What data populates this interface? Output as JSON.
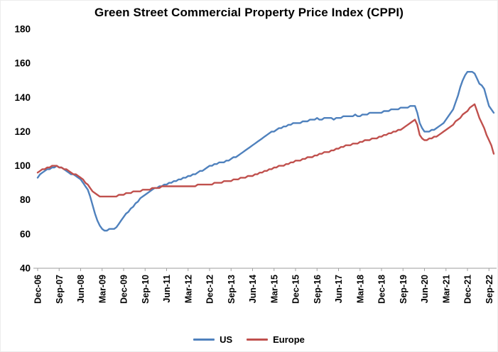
{
  "chart_data": {
    "type": "line",
    "title": "Green Street Commercial Property Price Index (CPPI)",
    "xlabel": "",
    "ylabel": "",
    "ylim": [
      40,
      180
    ],
    "yticks": [
      40,
      60,
      80,
      100,
      120,
      140,
      160,
      180
    ],
    "grid": false,
    "legend_position": "bottom",
    "x_unit": "monthly",
    "x_start": "Dec-06",
    "x_end": "Nov-22",
    "x_tick_interval": 9,
    "x_tick_labels": [
      "Dec-06",
      "Sep-07",
      "Jun-08",
      "Mar-09",
      "Dec-09",
      "Sep-10",
      "Jun-11",
      "Mar-12",
      "Dec-12",
      "Sep-13",
      "Jun-14",
      "Mar-15",
      "Dec-15",
      "Sep-16",
      "Jun-17",
      "Mar-18",
      "Dec-18",
      "Sep-19",
      "Jun-20",
      "Mar-21",
      "Dec-21",
      "Sep-22"
    ],
    "series": [
      {
        "name": "US",
        "color": "#4f81bd",
        "values": [
          93,
          95,
          96,
          97,
          98,
          98,
          99,
          99,
          100,
          99,
          99,
          98,
          97,
          96,
          95,
          95,
          94,
          93,
          92,
          90,
          88,
          86,
          82,
          77,
          72,
          68,
          65,
          63,
          62,
          62,
          63,
          63,
          63,
          64,
          66,
          68,
          70,
          72,
          73,
          75,
          76,
          78,
          79,
          81,
          82,
          83,
          84,
          85,
          86,
          87,
          87,
          88,
          88,
          89,
          89,
          90,
          90,
          91,
          91,
          92,
          92,
          93,
          93,
          94,
          94,
          95,
          95,
          96,
          97,
          97,
          98,
          99,
          100,
          100,
          101,
          101,
          102,
          102,
          102,
          103,
          103,
          104,
          105,
          105,
          106,
          107,
          108,
          109,
          110,
          111,
          112,
          113,
          114,
          115,
          116,
          117,
          118,
          119,
          120,
          120,
          121,
          122,
          122,
          123,
          123,
          124,
          124,
          125,
          125,
          125,
          125,
          126,
          126,
          126,
          127,
          127,
          127,
          128,
          127,
          127,
          128,
          128,
          128,
          128,
          127,
          128,
          128,
          128,
          129,
          129,
          129,
          129,
          129,
          130,
          129,
          129,
          130,
          130,
          130,
          131,
          131,
          131,
          131,
          131,
          131,
          132,
          132,
          132,
          133,
          133,
          133,
          133,
          134,
          134,
          134,
          134,
          135,
          135,
          135,
          131,
          125,
          122,
          120,
          120,
          120,
          121,
          121,
          122,
          123,
          124,
          125,
          127,
          129,
          131,
          133,
          137,
          141,
          146,
          150,
          153,
          155,
          155,
          155,
          154,
          151,
          148,
          147,
          145,
          140,
          135,
          133,
          131
        ]
      },
      {
        "name": "Europe",
        "color": "#c0504d",
        "values": [
          96,
          97,
          98,
          98,
          99,
          99,
          100,
          100,
          100,
          99,
          99,
          98,
          98,
          97,
          96,
          95,
          95,
          94,
          93,
          92,
          90,
          89,
          87,
          85,
          84,
          83,
          82,
          82,
          82,
          82,
          82,
          82,
          82,
          82,
          83,
          83,
          83,
          84,
          84,
          84,
          85,
          85,
          85,
          85,
          86,
          86,
          86,
          86,
          87,
          87,
          87,
          87,
          88,
          88,
          88,
          88,
          88,
          88,
          88,
          88,
          88,
          88,
          88,
          88,
          88,
          88,
          88,
          89,
          89,
          89,
          89,
          89,
          89,
          89,
          90,
          90,
          90,
          90,
          91,
          91,
          91,
          91,
          92,
          92,
          92,
          93,
          93,
          93,
          94,
          94,
          94,
          95,
          95,
          96,
          96,
          97,
          97,
          98,
          98,
          99,
          99,
          100,
          100,
          100,
          101,
          101,
          102,
          102,
          103,
          103,
          103,
          104,
          104,
          105,
          105,
          105,
          106,
          106,
          107,
          107,
          108,
          108,
          108,
          109,
          109,
          110,
          110,
          111,
          111,
          112,
          112,
          112,
          113,
          113,
          113,
          114,
          114,
          115,
          115,
          115,
          116,
          116,
          116,
          117,
          117,
          118,
          118,
          119,
          119,
          120,
          120,
          121,
          121,
          122,
          123,
          124,
          125,
          126,
          127,
          124,
          118,
          116,
          115,
          115,
          116,
          116,
          117,
          117,
          118,
          119,
          120,
          121,
          122,
          123,
          124,
          126,
          127,
          128,
          130,
          131,
          132,
          134,
          135,
          136,
          132,
          128,
          125,
          122,
          118,
          115,
          112,
          107
        ]
      }
    ]
  }
}
